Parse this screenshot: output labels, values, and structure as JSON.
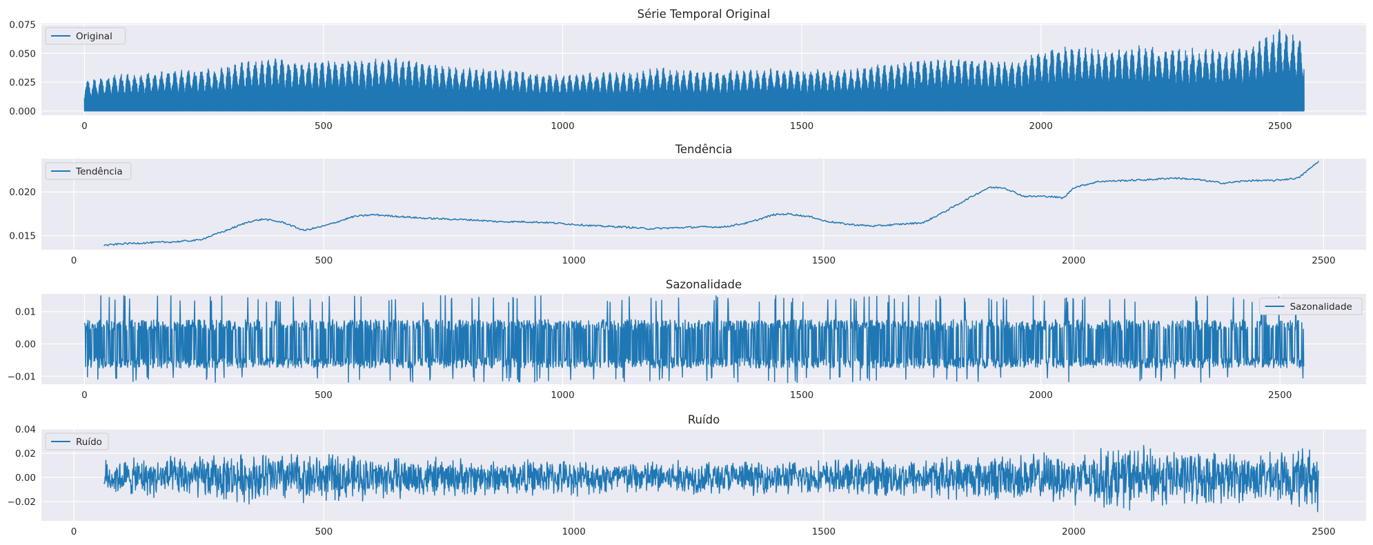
{
  "chart_data": [
    {
      "type": "line",
      "title": "Série Temporal Original",
      "xlim": [
        -90,
        2680
      ],
      "ylim": [
        -0.0037,
        0.076
      ],
      "xticks": [
        0,
        500,
        1000,
        1500,
        2000,
        2500
      ],
      "xtick_labels": [
        "0",
        "500",
        "1000",
        "1500",
        "2000",
        "2500"
      ],
      "yticks": [
        0.0,
        0.025,
        0.05,
        0.075
      ],
      "ytick_labels": [
        "0.000",
        "0.025",
        "0.050",
        "0.075"
      ],
      "legend_position": "upper left",
      "grid": true,
      "series": [
        {
          "name": "Original",
          "color": "#1f77b4",
          "x_range": [
            0,
            2550
          ],
          "envelope_upper": {
            "x": [
              0,
              50,
              100,
              150,
              200,
              250,
              300,
              350,
              400,
              450,
              500,
              550,
              600,
              650,
              700,
              750,
              800,
              850,
              900,
              950,
              1000,
              1050,
              1100,
              1150,
              1200,
              1250,
              1300,
              1350,
              1400,
              1450,
              1500,
              1550,
              1600,
              1650,
              1700,
              1750,
              1800,
              1850,
              1900,
              1950,
              2000,
              2050,
              2100,
              2150,
              2200,
              2250,
              2300,
              2350,
              2400,
              2450,
              2500,
              2550
            ],
            "y": [
              0.026,
              0.031,
              0.033,
              0.034,
              0.036,
              0.036,
              0.04,
              0.044,
              0.047,
              0.042,
              0.044,
              0.046,
              0.045,
              0.047,
              0.044,
              0.04,
              0.038,
              0.037,
              0.036,
              0.033,
              0.032,
              0.033,
              0.034,
              0.034,
              0.038,
              0.036,
              0.034,
              0.036,
              0.036,
              0.037,
              0.037,
              0.036,
              0.036,
              0.04,
              0.042,
              0.045,
              0.045,
              0.047,
              0.044,
              0.044,
              0.054,
              0.056,
              0.055,
              0.055,
              0.057,
              0.055,
              0.055,
              0.054,
              0.054,
              0.06,
              0.072,
              0.062
            ]
          },
          "envelope_lower": 0.0
        }
      ]
    },
    {
      "type": "line",
      "title": "Tendência",
      "xlim": [
        -65,
        2585
      ],
      "ylim": [
        0.0134,
        0.0238
      ],
      "xticks": [
        0,
        500,
        1000,
        1500,
        2000,
        2500
      ],
      "xtick_labels": [
        "0",
        "500",
        "1000",
        "1500",
        "2000",
        "2500"
      ],
      "yticks": [
        0.015,
        0.02
      ],
      "ytick_labels": [
        "0.015",
        "0.020"
      ],
      "legend_position": "upper left",
      "grid": true,
      "series": [
        {
          "name": "Tendência",
          "color": "#1f77b4",
          "x": [
            60,
            100,
            150,
            200,
            250,
            300,
            350,
            380,
            420,
            460,
            500,
            560,
            600,
            650,
            700,
            750,
            800,
            850,
            900,
            950,
            1000,
            1050,
            1100,
            1150,
            1200,
            1250,
            1300,
            1350,
            1400,
            1430,
            1480,
            1500,
            1550,
            1600,
            1650,
            1700,
            1750,
            1800,
            1830,
            1860,
            1900,
            1950,
            1980,
            2000,
            2050,
            2100,
            2150,
            2200,
            2250,
            2300,
            2350,
            2400,
            2450,
            2490
          ],
          "y": [
            0.0139,
            0.0141,
            0.0142,
            0.0143,
            0.0145,
            0.0155,
            0.0166,
            0.0169,
            0.0165,
            0.0156,
            0.0161,
            0.0172,
            0.0174,
            0.0172,
            0.017,
            0.0169,
            0.0168,
            0.0166,
            0.0166,
            0.0165,
            0.0163,
            0.0161,
            0.016,
            0.0158,
            0.0159,
            0.016,
            0.016,
            0.0165,
            0.0174,
            0.0175,
            0.0171,
            0.0167,
            0.0163,
            0.0161,
            0.0163,
            0.0165,
            0.018,
            0.0196,
            0.0205,
            0.0205,
            0.0195,
            0.0195,
            0.0193,
            0.0205,
            0.0212,
            0.0213,
            0.0214,
            0.0216,
            0.0214,
            0.021,
            0.0213,
            0.0213,
            0.0216,
            0.0235
          ]
        }
      ]
    },
    {
      "type": "line",
      "title": "Sazonalidade",
      "xlim": [
        -90,
        2680
      ],
      "ylim": [
        -0.0125,
        0.0155
      ],
      "xticks": [
        0,
        500,
        1000,
        1500,
        2000,
        2500
      ],
      "xtick_labels": [
        "0",
        "500",
        "1000",
        "1500",
        "2000",
        "2500"
      ],
      "yticks": [
        -0.01,
        0.0,
        0.01
      ],
      "ytick_labels": [
        "−0.01",
        "0.00",
        "0.01"
      ],
      "legend_position": "upper right",
      "grid": true,
      "series": [
        {
          "name": "Sazonalidade",
          "color": "#1f77b4",
          "x_range": [
            0,
            2550
          ],
          "amplitude_typical": 0.0075,
          "max": 0.015,
          "min": -0.012,
          "period_pattern": "repeating, constant amplitude"
        }
      ]
    },
    {
      "type": "line",
      "title": "Ruído",
      "xlim": [
        -65,
        2585
      ],
      "ylim": [
        -0.036,
        0.04
      ],
      "xticks": [
        0,
        500,
        1000,
        1500,
        2000,
        2500
      ],
      "xtick_labels": [
        "0",
        "500",
        "1000",
        "1500",
        "2000",
        "2500"
      ],
      "yticks": [
        -0.02,
        0.0,
        0.02,
        0.04
      ],
      "ytick_labels": [
        "−0.02",
        "0.00",
        "0.02",
        "0.04"
      ],
      "legend_position": "upper left",
      "grid": true,
      "series": [
        {
          "name": "Ruído",
          "color": "#1f77b4",
          "x_range": [
            60,
            2490
          ],
          "envelope_amplitude": {
            "x": [
              60,
              200,
              400,
              600,
              800,
              1000,
              1200,
              1400,
              1600,
              1800,
              2000,
              2100,
              2200,
              2300,
              2400,
              2490
            ],
            "y": [
              0.016,
              0.019,
              0.024,
              0.02,
              0.017,
              0.016,
              0.016,
              0.015,
              0.017,
              0.02,
              0.024,
              0.03,
              0.026,
              0.024,
              0.022,
              0.03
            ]
          }
        }
      ]
    }
  ]
}
